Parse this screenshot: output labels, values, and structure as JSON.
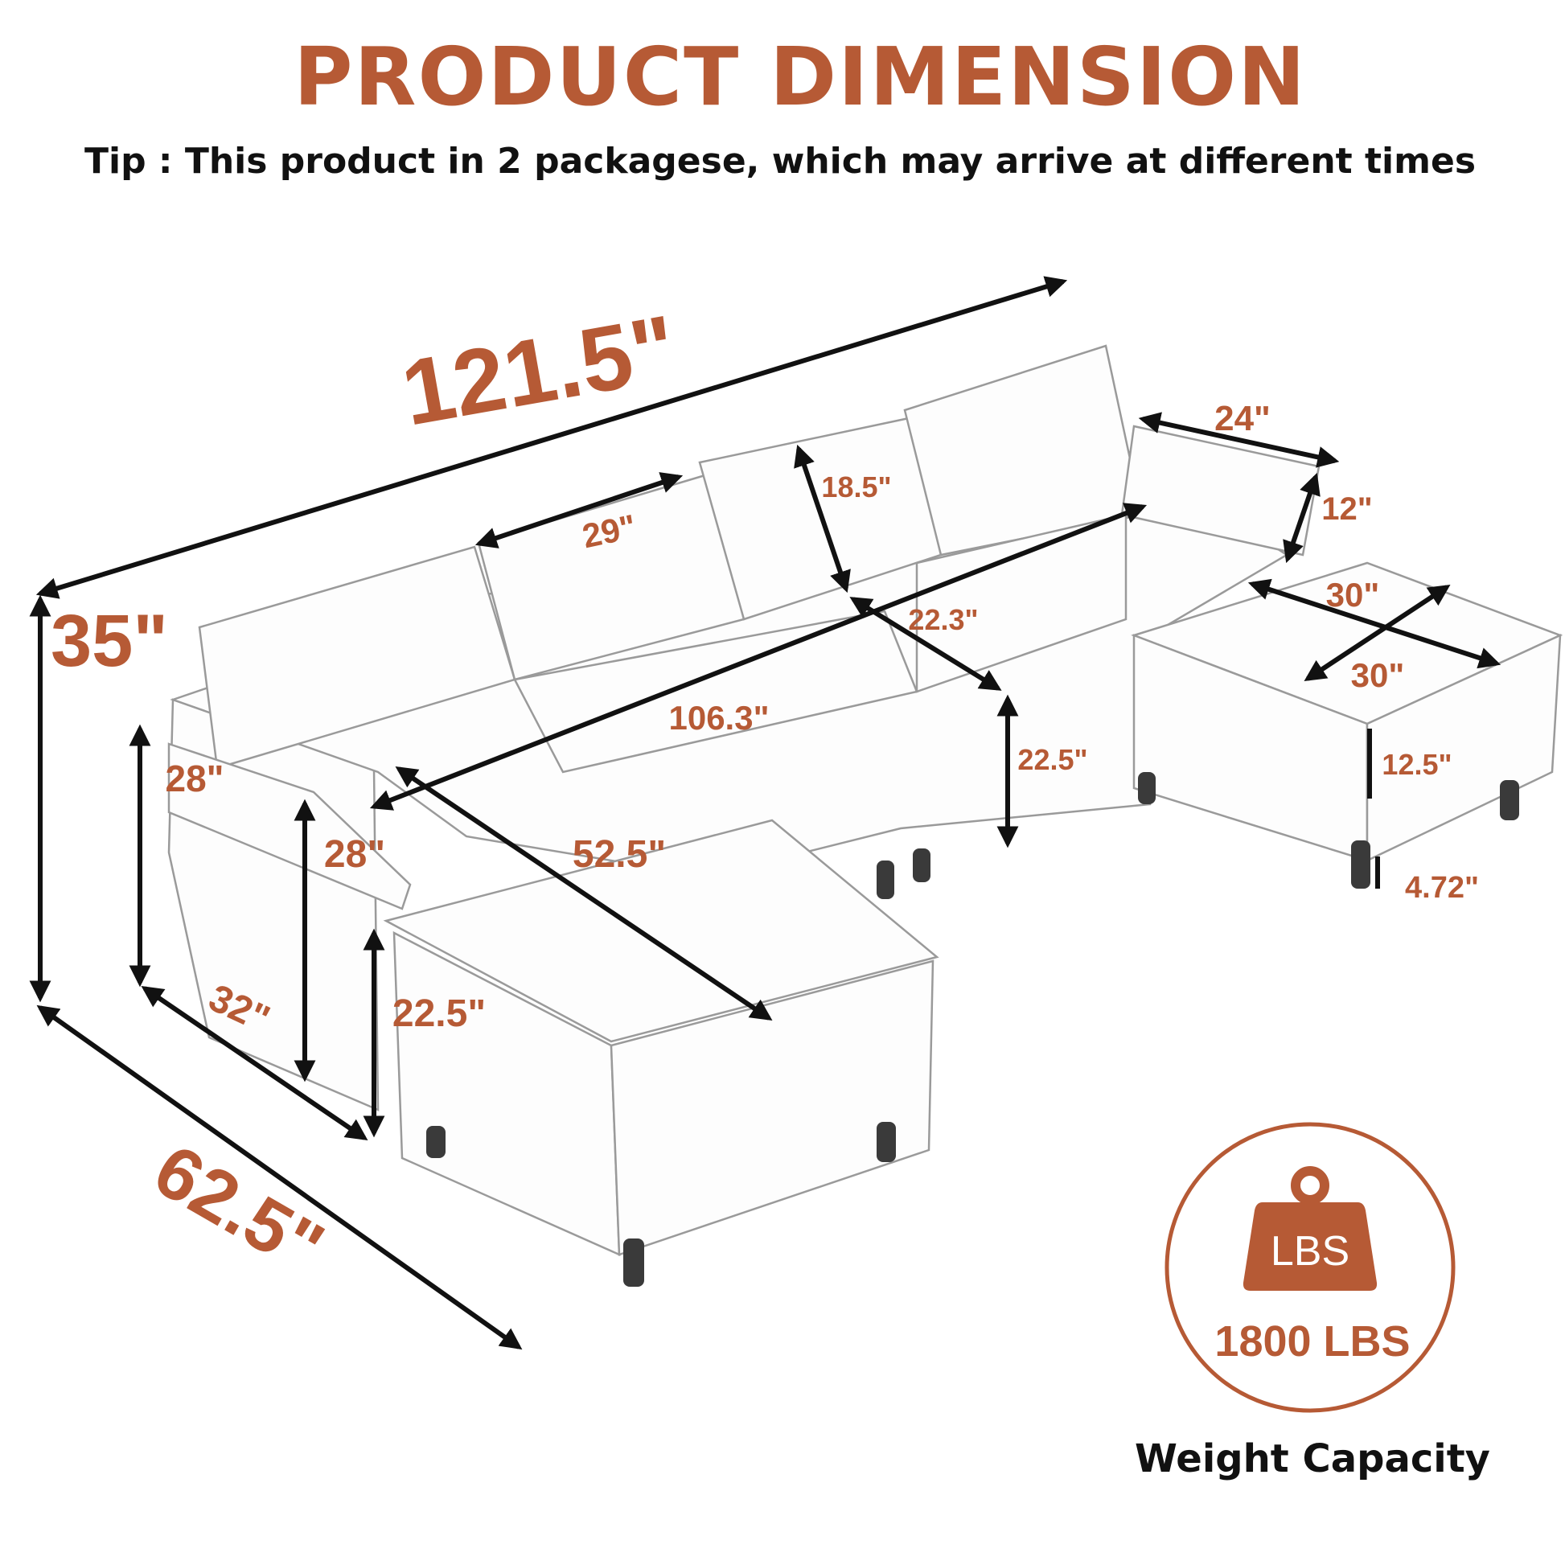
{
  "title": "PRODUCT DIMENSION",
  "tip": "Tip :  This product in 2 packagese, which may arrive at different times",
  "accent_color": "#b65a35",
  "dimensions": {
    "overall_length": "121.5\"",
    "overall_height": "35\"",
    "overall_depth": "62.5\"",
    "back_cushion_width": "29\"",
    "back_cushion_height": "18.5\"",
    "pillow_width": "24\"",
    "pillow_height": "12\"",
    "ottoman_depth": "30\"",
    "ottoman_width": "30\"",
    "seat_depth": "22.3\"",
    "seat_length": "106.3\"",
    "seat_height": "22.5\"",
    "ottoman_height": "12.5\"",
    "arm_height": "28\"",
    "arm_height_inner": "28\"",
    "chaise_length": "52.5\"",
    "leg_height": "4.72\"",
    "arm_depth": "32\"",
    "chaise_seat_height": "22.5\""
  },
  "weight": {
    "icon": "weight-lbs-icon",
    "icon_label": "LBS",
    "value": "1800 LBS",
    "caption": "Weight Capacity"
  }
}
